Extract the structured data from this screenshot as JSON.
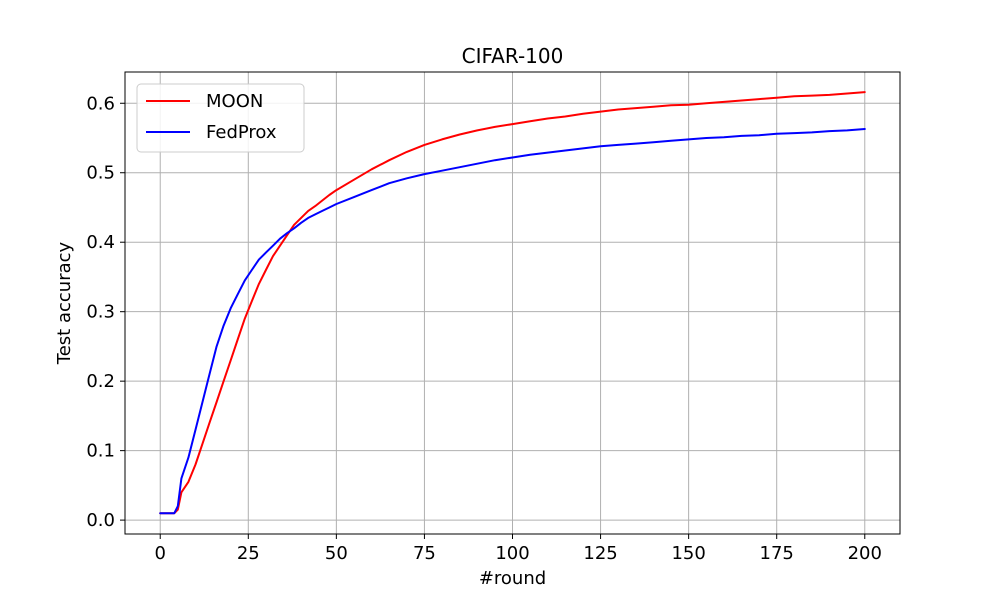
{
  "chart_data": {
    "type": "line",
    "title": "CIFAR-100",
    "xlabel": "#round",
    "ylabel": "Test accuracy",
    "xlim": [
      -10,
      210
    ],
    "ylim": [
      -0.02,
      0.645
    ],
    "xticks": [
      0,
      25,
      50,
      75,
      100,
      125,
      150,
      175,
      200
    ],
    "yticks": [
      0.0,
      0.1,
      0.2,
      0.3,
      0.4,
      0.5,
      0.6
    ],
    "xtick_labels": [
      "0",
      "25",
      "50",
      "75",
      "100",
      "125",
      "150",
      "175",
      "200"
    ],
    "ytick_labels": [
      "0.0",
      "0.1",
      "0.2",
      "0.3",
      "0.4",
      "0.5",
      "0.6"
    ],
    "grid": true,
    "legend_position": "top-left",
    "series": [
      {
        "name": "MOON",
        "color": "#ff0000",
        "x": [
          0,
          2,
          4,
          5,
          6,
          8,
          10,
          12,
          14,
          16,
          18,
          20,
          22,
          24,
          26,
          28,
          30,
          32,
          34,
          36,
          38,
          40,
          42,
          44,
          46,
          48,
          50,
          55,
          60,
          65,
          70,
          75,
          80,
          85,
          90,
          95,
          100,
          105,
          110,
          115,
          120,
          125,
          130,
          135,
          140,
          145,
          150,
          155,
          160,
          165,
          170,
          175,
          180,
          185,
          190,
          195,
          200
        ],
        "values": [
          0.01,
          0.01,
          0.01,
          0.015,
          0.04,
          0.055,
          0.08,
          0.11,
          0.14,
          0.17,
          0.2,
          0.23,
          0.26,
          0.29,
          0.315,
          0.34,
          0.36,
          0.38,
          0.395,
          0.41,
          0.425,
          0.435,
          0.445,
          0.452,
          0.46,
          0.468,
          0.475,
          0.49,
          0.505,
          0.518,
          0.53,
          0.54,
          0.548,
          0.555,
          0.561,
          0.566,
          0.57,
          0.574,
          0.578,
          0.581,
          0.585,
          0.588,
          0.591,
          0.593,
          0.595,
          0.597,
          0.598,
          0.6,
          0.602,
          0.604,
          0.606,
          0.608,
          0.61,
          0.611,
          0.612,
          0.614,
          0.616
        ]
      },
      {
        "name": "FedProx",
        "color": "#0000ff",
        "x": [
          0,
          2,
          4,
          5,
          6,
          8,
          10,
          12,
          14,
          16,
          18,
          20,
          22,
          24,
          26,
          28,
          30,
          32,
          34,
          36,
          38,
          40,
          42,
          44,
          46,
          48,
          50,
          55,
          60,
          65,
          70,
          75,
          80,
          85,
          90,
          95,
          100,
          105,
          110,
          115,
          120,
          125,
          130,
          135,
          140,
          145,
          150,
          155,
          160,
          165,
          170,
          175,
          180,
          185,
          190,
          195,
          200
        ],
        "values": [
          0.01,
          0.01,
          0.01,
          0.02,
          0.06,
          0.09,
          0.13,
          0.17,
          0.21,
          0.25,
          0.28,
          0.305,
          0.325,
          0.345,
          0.36,
          0.375,
          0.385,
          0.395,
          0.405,
          0.413,
          0.42,
          0.428,
          0.435,
          0.44,
          0.445,
          0.45,
          0.455,
          0.465,
          0.475,
          0.485,
          0.492,
          0.498,
          0.503,
          0.508,
          0.513,
          0.518,
          0.522,
          0.526,
          0.529,
          0.532,
          0.535,
          0.538,
          0.54,
          0.542,
          0.544,
          0.546,
          0.548,
          0.55,
          0.551,
          0.553,
          0.554,
          0.556,
          0.557,
          0.558,
          0.56,
          0.561,
          0.563
        ]
      }
    ]
  }
}
